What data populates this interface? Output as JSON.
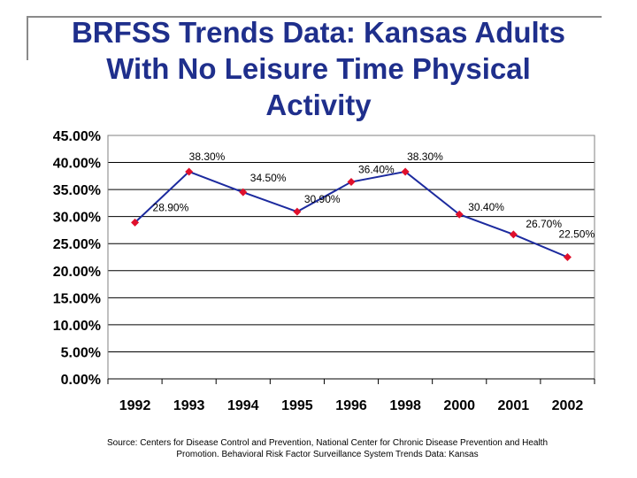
{
  "title": "BRFSS Trends Data: Kansas Adults With No Leisure Time Physical Activity",
  "source": "Source: Centers for Disease Control and Prevention, National Center for Chronic Disease Prevention and Health Promotion. Behavioral Risk Factor Surveillance System Trends Data: Kansas",
  "colors": {
    "title": "#1f2f8c",
    "line": "#1c2a9e",
    "marker": "#e0102c",
    "grid": "#000000"
  },
  "chart_data": {
    "type": "line",
    "title": "BRFSS Trends Data: Kansas Adults With No Leisure Time Physical Activity",
    "xlabel": "",
    "ylabel": "",
    "categories": [
      "1992",
      "1993",
      "1994",
      "1995",
      "1996",
      "1998",
      "2000",
      "2001",
      "2002"
    ],
    "series": [
      {
        "values": [
          28.9,
          38.3,
          34.5,
          30.9,
          36.4,
          38.3,
          30.4,
          26.7,
          22.5
        ],
        "data_labels": [
          "28.90%",
          "38.30%",
          "34.50%",
          "30.90%",
          "36.40%",
          "38.30%",
          "30.40%",
          "26.70%",
          "22.50%"
        ]
      }
    ],
    "ylim": [
      0,
      45
    ],
    "yticks": [
      0,
      5,
      10,
      15,
      20,
      25,
      30,
      35,
      40,
      45
    ],
    "ytick_labels": [
      "0.00%",
      "5.00%",
      "10.00%",
      "15.00%",
      "20.00%",
      "25.00%",
      "30.00%",
      "35.00%",
      "40.00%",
      "45.00%"
    ],
    "grid": true,
    "legend": "none"
  }
}
